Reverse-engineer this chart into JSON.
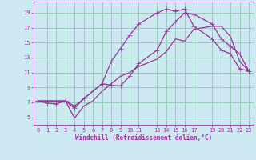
{
  "xlabel": "Windchill (Refroidissement éolien,°C)",
  "background_color": "#cce8f0",
  "grid_color": "#99ccbb",
  "line_color": "#993399",
  "xlim": [
    -0.5,
    23.5
  ],
  "ylim": [
    4.0,
    20.5
  ],
  "xticks": [
    0,
    1,
    2,
    3,
    4,
    5,
    6,
    7,
    8,
    9,
    10,
    11,
    13,
    14,
    15,
    16,
    17,
    19,
    20,
    21,
    22,
    23
  ],
  "yticks": [
    5,
    7,
    9,
    11,
    13,
    15,
    17,
    19
  ],
  "curve1_x": [
    0,
    1,
    2,
    3,
    4,
    7,
    8,
    9,
    10,
    11,
    13,
    14,
    15,
    16,
    17,
    19,
    20,
    21,
    22,
    23
  ],
  "curve1_y": [
    7.2,
    6.9,
    6.8,
    7.2,
    6.5,
    9.5,
    12.5,
    14.2,
    16.0,
    17.5,
    19.0,
    19.5,
    19.2,
    19.5,
    17.2,
    15.5,
    14.0,
    13.5,
    11.5,
    11.2
  ],
  "curve2_x": [
    0,
    3,
    4,
    5,
    7,
    8,
    9,
    10,
    11,
    13,
    14,
    15,
    16,
    17,
    19,
    20,
    21,
    22,
    23
  ],
  "curve2_y": [
    7.2,
    7.2,
    6.2,
    7.5,
    9.5,
    9.3,
    9.2,
    10.5,
    12.2,
    14.0,
    16.5,
    17.8,
    19.0,
    18.8,
    17.5,
    15.5,
    14.5,
    13.5,
    11.2
  ],
  "curve3_x": [
    0,
    3,
    4,
    5,
    6,
    7,
    8,
    9,
    10,
    11,
    13,
    14,
    15,
    16,
    17,
    19,
    20,
    21,
    22,
    23
  ],
  "curve3_y": [
    7.2,
    7.2,
    4.9,
    6.5,
    7.2,
    8.5,
    9.5,
    10.5,
    11.0,
    11.8,
    12.8,
    13.8,
    15.5,
    15.2,
    16.8,
    17.2,
    17.2,
    15.8,
    12.5,
    11.2
  ]
}
